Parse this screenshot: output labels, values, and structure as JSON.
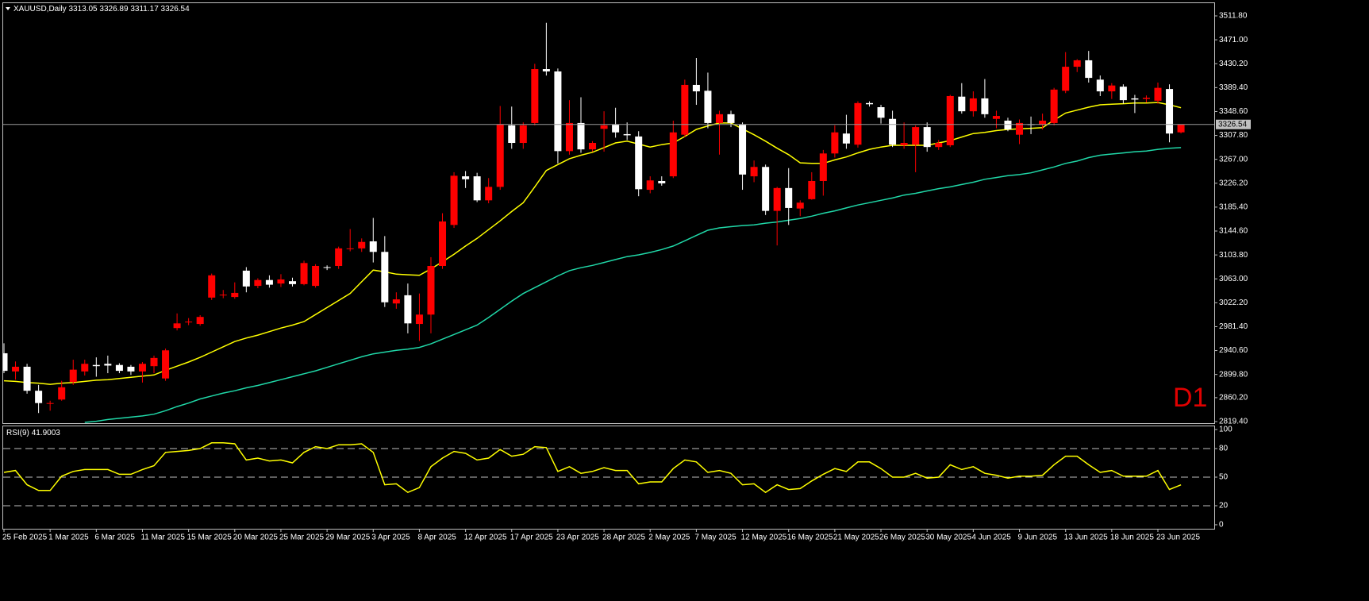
{
  "chart_data": [
    {
      "type": "candlestick",
      "title": "XAUUSD,Daily",
      "annotation": "D1",
      "categories": [
        "25 Feb 2025",
        null,
        null,
        null,
        "1 Mar 2025",
        null,
        null,
        null,
        "6 Mar 2025",
        null,
        null,
        null,
        "11 Mar 2025",
        null,
        null,
        null,
        "15 Mar 2025",
        null,
        null,
        null,
        "20 Mar 2025",
        null,
        null,
        null,
        "25 Mar 2025",
        null,
        null,
        null,
        "29 Mar 2025",
        null,
        null,
        null,
        "3 Apr 2025",
        null,
        null,
        null,
        "8 Apr 2025",
        null,
        null,
        null,
        "12 Apr 2025",
        null,
        null,
        null,
        "17 Apr 2025",
        null,
        null,
        null,
        "23 Apr 2025",
        null,
        null,
        null,
        "28 Apr 2025",
        null,
        null,
        null,
        "2 May 2025",
        null,
        null,
        null,
        "7 May 2025",
        null,
        null,
        null,
        "12 May 2025",
        null,
        null,
        null,
        "16 May 2025",
        null,
        null,
        null,
        "21 May 2025",
        null,
        null,
        null,
        "26 May 2025",
        null,
        null,
        null,
        "30 May 2025",
        null,
        null,
        null,
        "4 Jun 2025",
        null,
        null,
        null,
        "9 Jun 2025",
        null,
        null,
        null,
        "13 Jun 2025",
        null,
        null,
        null,
        "18 Jun 2025",
        null,
        null,
        null,
        "23 Jun 2025",
        null,
        null
      ],
      "open": [
        2936,
        2905,
        2913,
        2872,
        2850,
        2857,
        2887,
        2905,
        2916,
        2918,
        2916,
        2913,
        2905,
        2914,
        2893,
        2979,
        2989,
        2986,
        3031,
        3035,
        3032,
        3077,
        3051,
        3061,
        3055,
        3059,
        3054,
        3051,
        3083,
        3085,
        3114,
        3115,
        3127,
        3109,
        3021,
        3035,
        2986,
        3002,
        3085,
        3155,
        3238,
        3238,
        3197,
        3220,
        3325,
        3295,
        3329,
        3421,
        3417,
        3281,
        3329,
        3284,
        3319,
        3326,
        3310,
        3306,
        3215,
        3230,
        3238,
        3309,
        3394,
        3384,
        3329,
        3344,
        3326,
        3238,
        3254,
        3179,
        3218,
        3183,
        3199,
        3230,
        3277,
        3311,
        3292,
        3363,
        3356,
        3336,
        3291,
        3292,
        3322,
        3288,
        3291,
        3374,
        3349,
        3371,
        3336,
        3333,
        3309,
        3327,
        3326,
        3329,
        3384,
        3425,
        3436,
        3403,
        3383,
        3391,
        3371,
        3370,
        3367,
        3387,
        3313.05
      ],
      "high": [
        2953,
        2922,
        2918,
        2882,
        2855,
        2889,
        2925,
        2925,
        2929,
        2932,
        2919,
        2916,
        2921,
        2932,
        2944,
        3004,
        2996,
        3001,
        3072,
        3044,
        3057,
        3083,
        3064,
        3069,
        3071,
        3065,
        3094,
        3088,
        3086,
        3118,
        3148,
        3132,
        3167,
        3136,
        3040,
        3055,
        3038,
        3100,
        3175,
        3245,
        3247,
        3244,
        3235,
        3358,
        3357,
        3330,
        3430,
        3500,
        3422,
        3368,
        3373,
        3298,
        3349,
        3355,
        3330,
        3315,
        3238,
        3238,
        3333,
        3403,
        3440,
        3415,
        3350,
        3350,
        3330,
        3265,
        3258,
        3220,
        3252,
        3197,
        3245,
        3283,
        3325,
        3343,
        3366,
        3366,
        3360,
        3350,
        3330,
        3325,
        3330,
        3300,
        3377,
        3397,
        3383,
        3404,
        3350,
        3338,
        3335,
        3340,
        3345,
        3389,
        3450,
        3438,
        3452,
        3410,
        3397,
        3395,
        3377,
        3376,
        3398,
        3395,
        3326.89
      ],
      "low": [
        2902,
        2891,
        2867,
        2834,
        2838,
        2855,
        2882,
        2898,
        2896,
        2902,
        2902,
        2899,
        2886,
        2902,
        2889,
        2975,
        2984,
        2983,
        3027,
        3030,
        3029,
        3040,
        3047,
        3048,
        3049,
        3050,
        3052,
        3048,
        3078,
        3080,
        3110,
        3109,
        3091,
        3015,
        3012,
        2970,
        2957,
        2970,
        3080,
        3150,
        3218,
        3194,
        3192,
        3215,
        3285,
        3285,
        3325,
        3410,
        3260,
        3275,
        3278,
        3280,
        3280,
        3304,
        3300,
        3204,
        3209,
        3222,
        3235,
        3305,
        3360,
        3320,
        3275,
        3322,
        3215,
        3228,
        3172,
        3120,
        3155,
        3170,
        3198,
        3205,
        3270,
        3285,
        3287,
        3357,
        3328,
        3288,
        3285,
        3245,
        3280,
        3283,
        3288,
        3345,
        3340,
        3338,
        3320,
        3315,
        3293,
        3310,
        3318,
        3325,
        3380,
        3416,
        3398,
        3375,
        3370,
        3362,
        3346,
        3364,
        3362,
        3296,
        3311.17
      ],
      "close": [
        2906,
        2913,
        2872,
        2851,
        2851,
        2878,
        2908,
        2918,
        2914,
        2915,
        2906,
        2905,
        2918,
        2928,
        2941,
        2987,
        2990,
        2998,
        3069,
        3036,
        3039,
        3050,
        3061,
        3053,
        3062,
        3054,
        3090,
        3085,
        3082,
        3115,
        3115,
        3126,
        3109,
        3023,
        3028,
        2987,
        3002,
        3085,
        3161,
        3239,
        3233,
        3197,
        3220,
        3327,
        3295,
        3325,
        3421,
        3417,
        3281,
        3329,
        3284,
        3295,
        3325,
        3313,
        3308,
        3216,
        3231,
        3226,
        3313,
        3394,
        3383,
        3329,
        3344,
        3329,
        3241,
        3254,
        3179,
        3218,
        3184,
        3193,
        3230,
        3277,
        3313,
        3294,
        3363,
        3361,
        3338,
        3292,
        3295,
        3322,
        3288,
        3295,
        3375,
        3349,
        3371,
        3344,
        3341,
        3318,
        3329,
        3326,
        3333,
        3386,
        3425,
        3436,
        3406,
        3383,
        3393,
        3368,
        3369,
        3372,
        3389,
        3311,
        3326.54
      ],
      "up_color": "#ff0000",
      "down_color": "#ffffff",
      "series": [
        {
          "color": "#ffff00",
          "values": [
            2889,
            2888,
            2886,
            2885,
            2883,
            2885,
            2886,
            2888,
            2890,
            2891,
            2893,
            2895,
            2897,
            2899,
            2907,
            2914,
            2921,
            2929,
            2938,
            2947,
            2956,
            2962,
            2967,
            2973,
            2979,
            2984,
            2990,
            3002,
            3014,
            3026,
            3038,
            3058,
            3078,
            3075,
            3071,
            3070,
            3069,
            3080,
            3092,
            3105,
            3119,
            3132,
            3147,
            3162,
            3178,
            3193,
            3220,
            3248,
            3258,
            3268,
            3274,
            3279,
            3287,
            3295,
            3298,
            3293,
            3288,
            3292,
            3295,
            3306,
            3318,
            3324,
            3329,
            3329,
            3319,
            3309,
            3298,
            3286,
            3275,
            3261,
            3260,
            3260,
            3266,
            3271,
            3278,
            3284,
            3288,
            3291,
            3291,
            3291,
            3291,
            3295,
            3299,
            3305,
            3311,
            3313,
            3316,
            3318,
            3319,
            3320,
            3321,
            3334,
            3346,
            3351,
            3356,
            3360,
            3361,
            3362,
            3363,
            3363,
            3364,
            3360,
            3355
          ]
        },
        {
          "color": "#20d8a8",
          "values": [
            null,
            null,
            null,
            null,
            null,
            null,
            null,
            2818,
            2820,
            2823,
            2825,
            2827,
            2829,
            2832,
            2838,
            2845,
            2851,
            2858,
            2863,
            2868,
            2872,
            2877,
            2881,
            2886,
            2891,
            2896,
            2901,
            2906,
            2912,
            2918,
            2924,
            2930,
            2935,
            2938,
            2941,
            2943,
            2946,
            2952,
            2960,
            2968,
            2976,
            2984,
            2997,
            3011,
            3025,
            3038,
            3048,
            3058,
            3068,
            3077,
            3082,
            3086,
            3091,
            3096,
            3101,
            3104,
            3108,
            3113,
            3119,
            3128,
            3137,
            3146,
            3150,
            3152,
            3154,
            3155,
            3158,
            3160,
            3163,
            3166,
            3170,
            3175,
            3179,
            3184,
            3189,
            3193,
            3197,
            3201,
            3206,
            3209,
            3213,
            3217,
            3220,
            3224,
            3228,
            3233,
            3236,
            3239,
            3241,
            3244,
            3249,
            3254,
            3260,
            3264,
            3270,
            3274,
            3276,
            3278,
            3280,
            3281,
            3284,
            3286,
            3287
          ]
        }
      ],
      "ylim": [
        2816.7,
        3533.5
      ],
      "yticks": [
        {
          "value": 3511.8,
          "label": "3511.80"
        },
        {
          "value": 3471,
          "label": "3471.00"
        },
        {
          "value": 3430.2,
          "label": "3430.20"
        },
        {
          "value": 3389.4,
          "label": "3389.40"
        },
        {
          "value": 3348.6,
          "label": "3348.60"
        },
        {
          "value": 3307.8,
          "label": "3307.80"
        },
        {
          "value": 3267,
          "label": "3267.00"
        },
        {
          "value": 3226.2,
          "label": "3226.20"
        },
        {
          "value": 3185.4,
          "label": "3185.40"
        },
        {
          "value": 3144.6,
          "label": "3144.60"
        },
        {
          "value": 3103.8,
          "label": "3103.80"
        },
        {
          "value": 3063,
          "label": "3063.00"
        },
        {
          "value": 3022.2,
          "label": "3022.20"
        },
        {
          "value": 2981.4,
          "label": "2981.40"
        },
        {
          "value": 2940.6,
          "label": "2940.60"
        },
        {
          "value": 2899.8,
          "label": "2899.80"
        },
        {
          "value": 2860.2,
          "label": "2860.20"
        },
        {
          "value": 2819.4,
          "label": "2819.40"
        }
      ]
    },
    {
      "type": "line",
      "title": "RSI(9)",
      "color": "#ffff00",
      "values": [
        55,
        57,
        42,
        36,
        36,
        51,
        56,
        58,
        58,
        58,
        53,
        53,
        58,
        62,
        76,
        77,
        78,
        80,
        86,
        86,
        85,
        68,
        70,
        67,
        68,
        65,
        76,
        82,
        80,
        84,
        84,
        85,
        76,
        42,
        43,
        34,
        39,
        61,
        70,
        77,
        75,
        68,
        70,
        79,
        72,
        74,
        82,
        81,
        56,
        61,
        54,
        56,
        60,
        57,
        57,
        43,
        45,
        45,
        59,
        68,
        66,
        55,
        57,
        54,
        42,
        43,
        34,
        42,
        37,
        38,
        46,
        53,
        59,
        56,
        66,
        66,
        59,
        50,
        50,
        54,
        49,
        50,
        63,
        58,
        61,
        54,
        52,
        49,
        51,
        51,
        52,
        63,
        72,
        72,
        63,
        55,
        57,
        51,
        51,
        51,
        57,
        37,
        41.9003
      ],
      "ylim": [
        -4.2,
        104.2
      ],
      "yticks": [
        0,
        20,
        50,
        80,
        100
      ],
      "levels": [
        20,
        50,
        80
      ]
    }
  ]
}
